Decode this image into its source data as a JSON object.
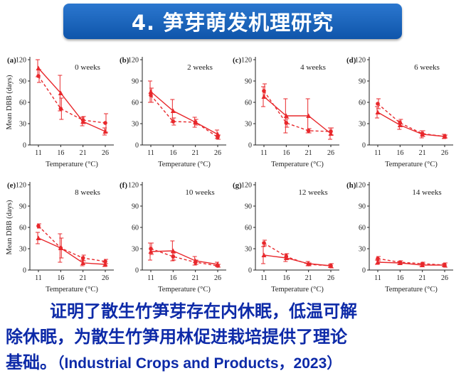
{
  "title": "4. 笋芽萌发机理研究",
  "caption": {
    "line1": "证明了散生竹笋芽存在内休眠，低温可解",
    "line2": "除休眠，为散生竹笋用林促进栽培提供了理论",
    "line3": "基础。",
    "citation": "（Industrial Crops and Products，2023）"
  },
  "colors": {
    "series": "#e8282c",
    "axis": "#222222",
    "title_bg": "#1a5fb4",
    "caption": "#0d2aa8"
  },
  "chart_data": [
    {
      "type": "line",
      "panel": "(a)",
      "title": "0 weeks",
      "xlabel": "Temperature (°C)",
      "ylabel": "Mean DBB (days)",
      "x": [
        11,
        16,
        21,
        26
      ],
      "ylim": [
        0,
        120
      ],
      "yticks": [
        0,
        30,
        60,
        90,
        120
      ],
      "series": [
        {
          "style": "solid",
          "marker": "triangle",
          "values": [
            108,
            73,
            33,
            19
          ],
          "errors": [
            12,
            25,
            6,
            5
          ]
        },
        {
          "style": "dashed",
          "marker": "circle",
          "values": [
            97,
            51,
            35,
            31
          ],
          "errors": [
            9,
            15,
            5,
            13
          ]
        }
      ]
    },
    {
      "type": "line",
      "panel": "(b)",
      "title": "2 weeks",
      "xlabel": "Temperature (°C)",
      "ylabel": "",
      "x": [
        11,
        16,
        21,
        26
      ],
      "ylim": [
        0,
        120
      ],
      "yticks": [
        0,
        30,
        60,
        90,
        120
      ],
      "series": [
        {
          "style": "solid",
          "marker": "triangle",
          "values": [
            75,
            48,
            32,
            15
          ],
          "errors": [
            15,
            16,
            7,
            6
          ]
        },
        {
          "style": "dashed",
          "marker": "circle",
          "values": [
            70,
            33,
            32,
            11
          ],
          "errors": [
            10,
            5,
            4,
            3
          ]
        }
      ]
    },
    {
      "type": "line",
      "panel": "(c)",
      "title": "4 weeks",
      "xlabel": "Temperature (°C)",
      "ylabel": "",
      "x": [
        11,
        16,
        21,
        26
      ],
      "ylim": [
        0,
        120
      ],
      "yticks": [
        0,
        30,
        60,
        90,
        120
      ],
      "series": [
        {
          "style": "solid",
          "marker": "triangle",
          "values": [
            68,
            41,
            41,
            16
          ],
          "errors": [
            14,
            24,
            24,
            8
          ]
        },
        {
          "style": "dashed",
          "marker": "circle",
          "values": [
            76,
            31,
            20,
            19
          ],
          "errors": [
            10,
            6,
            3,
            5
          ]
        }
      ]
    },
    {
      "type": "line",
      "panel": "(d)",
      "title": "6 weeks",
      "xlabel": "Temperature (°C)",
      "ylabel": "",
      "x": [
        11,
        16,
        21,
        26
      ],
      "ylim": [
        0,
        120
      ],
      "yticks": [
        0,
        30,
        60,
        90,
        120
      ],
      "series": [
        {
          "style": "solid",
          "marker": "triangle",
          "values": [
            46,
            28,
            15,
            12
          ],
          "errors": [
            8,
            6,
            5,
            3
          ]
        },
        {
          "style": "dashed",
          "marker": "circle",
          "values": [
            58,
            31,
            16,
            12
          ],
          "errors": [
            7,
            5,
            4,
            2
          ]
        }
      ]
    },
    {
      "type": "line",
      "panel": "(e)",
      "title": "8 weeks",
      "xlabel": "Temperature (°C)",
      "ylabel": "Mean DBB (days)",
      "x": [
        11,
        16,
        21,
        26
      ],
      "ylim": [
        0,
        120
      ],
      "yticks": [
        0,
        30,
        60,
        90,
        120
      ],
      "series": [
        {
          "style": "solid",
          "marker": "triangle",
          "values": [
            45,
            31,
            10,
            8
          ],
          "errors": [
            8,
            20,
            4,
            3
          ]
        },
        {
          "style": "dashed",
          "marker": "circle",
          "values": [
            62,
            31,
            17,
            12
          ],
          "errors": [
            3,
            14,
            4,
            3
          ]
        }
      ]
    },
    {
      "type": "line",
      "panel": "(f)",
      "title": "10 weeks",
      "xlabel": "Temperature (°C)",
      "ylabel": "",
      "x": [
        11,
        16,
        21,
        26
      ],
      "ylim": [
        0,
        120
      ],
      "yticks": [
        0,
        30,
        60,
        90,
        120
      ],
      "series": [
        {
          "style": "solid",
          "marker": "triangle",
          "values": [
            26,
            27,
            13,
            8
          ],
          "errors": [
            12,
            14,
            6,
            3
          ]
        },
        {
          "style": "dashed",
          "marker": "circle",
          "values": [
            30,
            19,
            11,
            6
          ],
          "errors": [
            8,
            5,
            3,
            2
          ]
        }
      ]
    },
    {
      "type": "line",
      "panel": "(g)",
      "title": "12 weeks",
      "xlabel": "Temperature (°C)",
      "ylabel": "",
      "x": [
        11,
        16,
        21,
        26
      ],
      "ylim": [
        0,
        120
      ],
      "yticks": [
        0,
        30,
        60,
        90,
        120
      ],
      "series": [
        {
          "style": "solid",
          "marker": "triangle",
          "values": [
            21,
            17,
            9,
            6
          ],
          "errors": [
            12,
            5,
            3,
            2
          ]
        },
        {
          "style": "dashed",
          "marker": "circle",
          "values": [
            38,
            19,
            8,
            6
          ],
          "errors": [
            4,
            4,
            2,
            3
          ]
        }
      ]
    },
    {
      "type": "line",
      "panel": "(h)",
      "title": "14 weeks",
      "xlabel": "Temperature (°C)",
      "ylabel": "",
      "x": [
        11,
        16,
        21,
        26
      ],
      "ylim": [
        0,
        120
      ],
      "yticks": [
        0,
        30,
        60,
        90,
        120
      ],
      "series": [
        {
          "style": "solid",
          "marker": "triangle",
          "values": [
            11,
            10,
            7,
            7
          ],
          "errors": [
            3,
            2,
            2,
            2
          ]
        },
        {
          "style": "dashed",
          "marker": "circle",
          "values": [
            16,
            11,
            9,
            7
          ],
          "errors": [
            3,
            2,
            2,
            3
          ]
        }
      ]
    }
  ]
}
